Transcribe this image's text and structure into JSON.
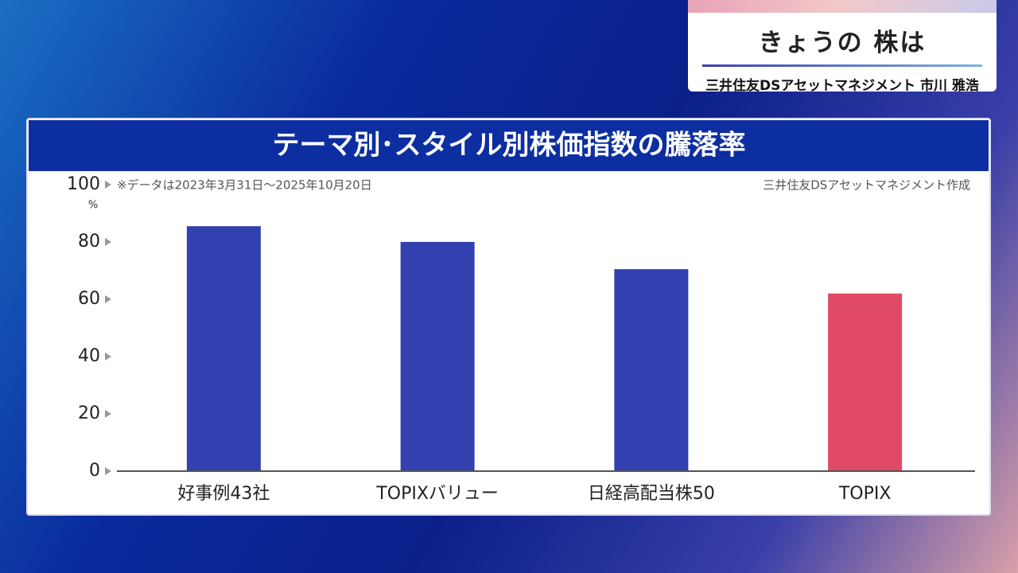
{
  "header": {
    "title": "きょうの 株は",
    "subtitle": "三井住友DSアセットマネジメント 市川 雅浩"
  },
  "chart_data": {
    "type": "bar",
    "title": "テーマ別･スタイル別株価指数の騰落率",
    "note": "※データは2023年3月31日～2025年10月20日",
    "source": "三井住友DSアセットマネジメント作成",
    "y_unit": "%",
    "categories": [
      "好事例43社",
      "TOPIXバリュー",
      "日経高配当株50",
      "TOPIX"
    ],
    "values": [
      85.5,
      80,
      70.5,
      62
    ],
    "colors": [
      "#3340b0",
      "#3340b0",
      "#3340b0",
      "#e04a64"
    ],
    "ylim": [
      0,
      100
    ],
    "yticks": [
      0,
      20,
      40,
      60,
      80,
      100
    ],
    "grid": false
  }
}
